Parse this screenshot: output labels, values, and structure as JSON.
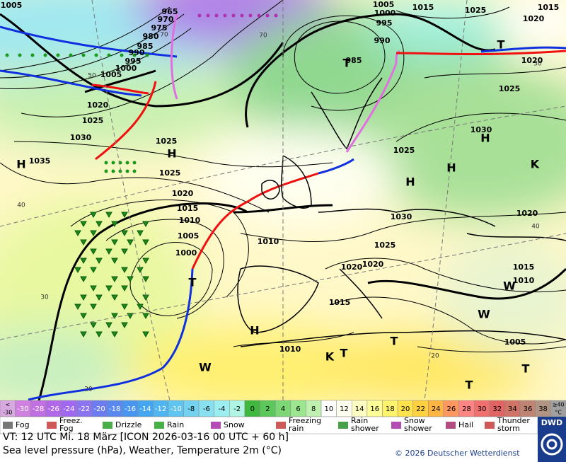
{
  "map": {
    "pressure_labels": [
      "965",
      "970",
      "975",
      "980",
      "985",
      "990",
      "995",
      "1000",
      "1005",
      "1020",
      "1025",
      "1030",
      "1035",
      "1025",
      "1025",
      "1020",
      "1015",
      "1010",
      "1005",
      "1000",
      "1010",
      "1015",
      "1010",
      "1030",
      "1025",
      "1020",
      "1020",
      "1025",
      "1030",
      "1025",
      "1020",
      "1020",
      "1015",
      "1010",
      "1005",
      "1005",
      "1000",
      "995",
      "990",
      "1015",
      "1025",
      "1015",
      "1020",
      "1005",
      "985"
    ],
    "temperature_labels": [
      "50",
      "70",
      "40",
      "30",
      "20",
      "70",
      "40",
      "20",
      "30"
    ],
    "centers": [
      "H",
      "H",
      "H",
      "H",
      "H",
      "H",
      "T",
      "T",
      "T",
      "T",
      "T",
      "T",
      "T",
      "K",
      "K",
      "W",
      "W",
      "W"
    ]
  },
  "color_scale": [
    {
      "lines": [
        "<",
        "-30"
      ],
      "color": "#d8a8e0"
    },
    {
      "lines": [
        "-30"
      ],
      "color": "#d080e0"
    },
    {
      "lines": [
        "-28"
      ],
      "color": "#c070e0"
    },
    {
      "lines": [
        "-26"
      ],
      "color": "#b068e8"
    },
    {
      "lines": [
        "-24"
      ],
      "color": "#a068f0"
    },
    {
      "lines": [
        "-22"
      ],
      "color": "#8c74f0"
    },
    {
      "lines": [
        "-20"
      ],
      "color": "#6c7cf0"
    },
    {
      "lines": [
        "-18"
      ],
      "color": "#5888f0"
    },
    {
      "lines": [
        "-16"
      ],
      "color": "#4896f0"
    },
    {
      "lines": [
        "-14"
      ],
      "color": "#44a6f0"
    },
    {
      "lines": [
        "-12"
      ],
      "color": "#50b4f0"
    },
    {
      "lines": [
        "-10"
      ],
      "color": "#60c4f0"
    },
    {
      "lines": [
        "-8"
      ],
      "color": "#74d2f0"
    },
    {
      "lines": [
        "-6"
      ],
      "color": "#88e0f0"
    },
    {
      "lines": [
        "-4"
      ],
      "color": "#9ceef0"
    },
    {
      "lines": [
        "-2"
      ],
      "color": "#b0f4e4"
    },
    {
      "lines": [
        "0"
      ],
      "color": "#40b840"
    },
    {
      "lines": [
        "2"
      ],
      "color": "#5cc85c"
    },
    {
      "lines": [
        "4"
      ],
      "color": "#7cd874"
    },
    {
      "lines": [
        "6"
      ],
      "color": "#9ce690"
    },
    {
      "lines": [
        "8"
      ],
      "color": "#c0f0b0"
    },
    {
      "lines": [
        "10"
      ],
      "color": "#ffffff"
    },
    {
      "lines": [
        "12"
      ],
      "color": "#fffff0"
    },
    {
      "lines": [
        "14"
      ],
      "color": "#ffffc4"
    },
    {
      "lines": [
        "16"
      ],
      "color": "#ffff98"
    },
    {
      "lines": [
        "18"
      ],
      "color": "#fff26c"
    },
    {
      "lines": [
        "20"
      ],
      "color": "#ffe24c"
    },
    {
      "lines": [
        "22"
      ],
      "color": "#ffd040"
    },
    {
      "lines": [
        "24"
      ],
      "color": "#ffb444"
    },
    {
      "lines": [
        "26"
      ],
      "color": "#ff9860"
    },
    {
      "lines": [
        "28"
      ],
      "color": "#ff8484"
    },
    {
      "lines": [
        "30"
      ],
      "color": "#f07070"
    },
    {
      "lines": [
        "32"
      ],
      "color": "#e06464"
    },
    {
      "lines": [
        "34"
      ],
      "color": "#d07468"
    },
    {
      "lines": [
        "36"
      ],
      "color": "#c08474"
    },
    {
      "lines": [
        "38"
      ],
      "color": "#b09484"
    },
    {
      "lines": [
        "≥40",
        "°C"
      ],
      "color": "#a0a0a0"
    }
  ],
  "weather_legend": [
    {
      "lines": [
        "Fog"
      ]
    },
    {
      "lines": [
        "Freez.",
        "Fog"
      ]
    },
    {
      "lines": [
        "Drizzle"
      ]
    },
    {
      "lines": [
        "Rain"
      ]
    },
    {
      "lines": [
        "Snow"
      ]
    },
    {
      "lines": [
        "Freezing",
        "rain"
      ]
    },
    {
      "lines": [
        "Rain",
        "shower"
      ]
    },
    {
      "lines": [
        "Snow",
        "shower"
      ]
    },
    {
      "lines": [
        "Hail"
      ]
    },
    {
      "lines": [
        "Thunder",
        "storm"
      ]
    }
  ],
  "logo": "DWD",
  "footer": {
    "valid_time": "VT: 12 UTC Mi.  18 März [ICON 2026-03-16  00 UTC + 60 h]",
    "description": "Sea level pressure (hPa), Weather, Temperature 2m (°C)",
    "copyright": "© 2026 Deutscher Wetterdienst"
  }
}
